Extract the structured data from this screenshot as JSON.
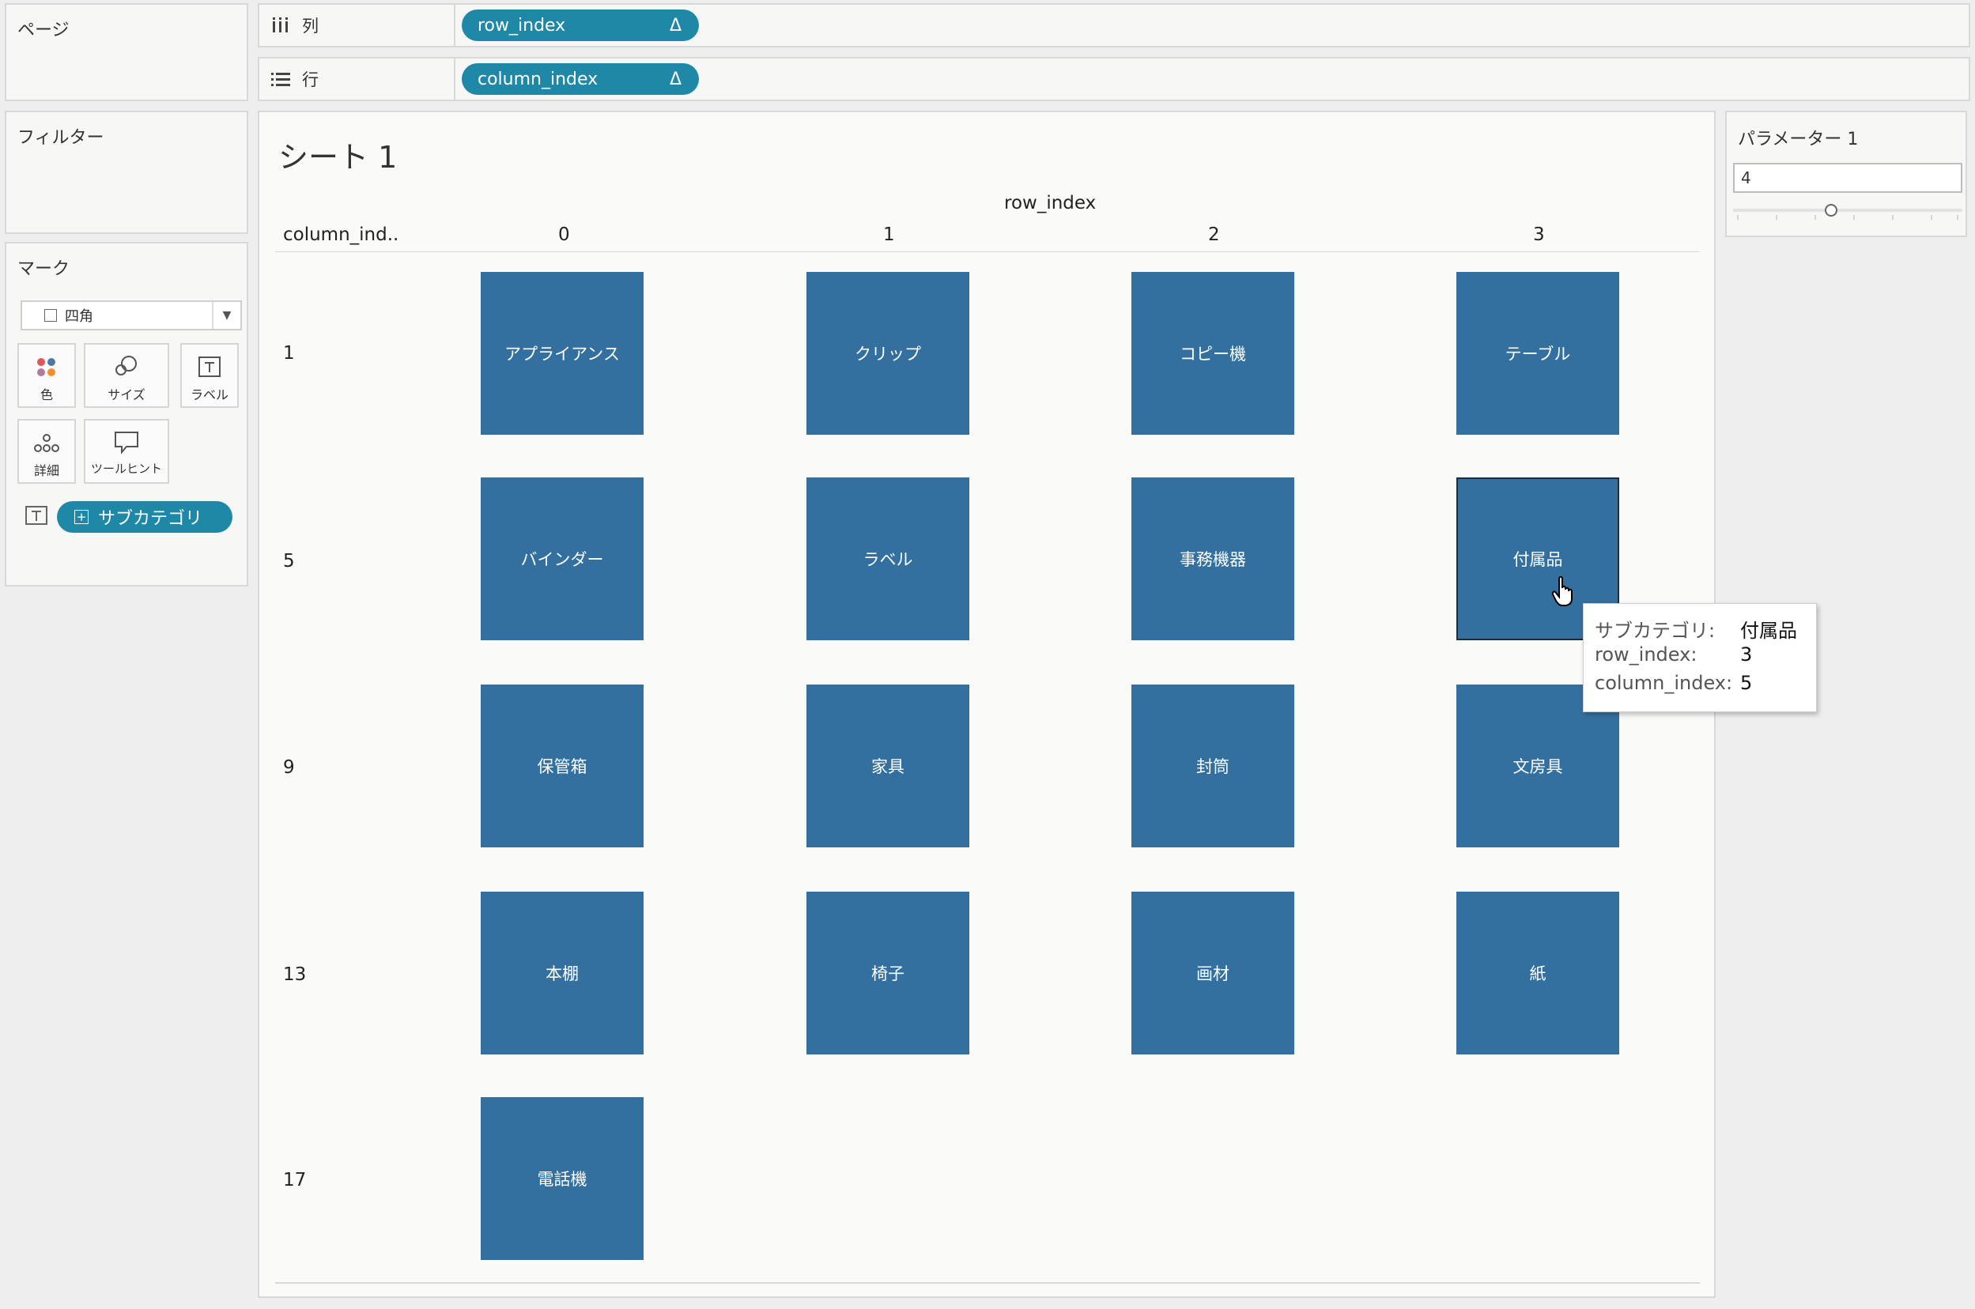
{
  "pages": {
    "title": "ページ"
  },
  "columns_shelf": {
    "label": "列",
    "pill": "row_index",
    "pill_icon": "Δ"
  },
  "rows_shelf": {
    "label": "行",
    "pill": "column_index",
    "pill_icon": "Δ"
  },
  "filters": {
    "title": "フィルター"
  },
  "marks": {
    "title": "マーク",
    "mark_type": "四角",
    "buttons": {
      "color": "色",
      "size": "サイズ",
      "label": "ラベル",
      "detail": "詳細",
      "tooltip": "ツールヒント"
    },
    "field_pill": "サブカテゴリ"
  },
  "parameter": {
    "title": "パラメーター 1",
    "value": "4",
    "slider_fraction": 0.4
  },
  "view": {
    "sheet_title": "シート 1",
    "column_header_title": "row_index",
    "row_header_title": "column_ind..",
    "column_headers": [
      "0",
      "1",
      "2",
      "3"
    ],
    "row_headers": [
      "1",
      "5",
      "9",
      "13",
      "17"
    ],
    "cells": [
      [
        "アプライアンス",
        "クリップ",
        "コピー機",
        "テーブル"
      ],
      [
        "バインダー",
        "ラベル",
        "事務機器",
        "付属品"
      ],
      [
        "保管箱",
        "家具",
        "封筒",
        "文房具"
      ],
      [
        "本棚",
        "椅子",
        "画材",
        "紙"
      ],
      [
        "電話機"
      ]
    ]
  },
  "tooltip": {
    "rows": [
      {
        "key": "サブカテゴリ:",
        "value": "付属品"
      },
      {
        "key": "row_index:",
        "value": "3"
      },
      {
        "key": "column_index:",
        "value": "5"
      }
    ]
  }
}
